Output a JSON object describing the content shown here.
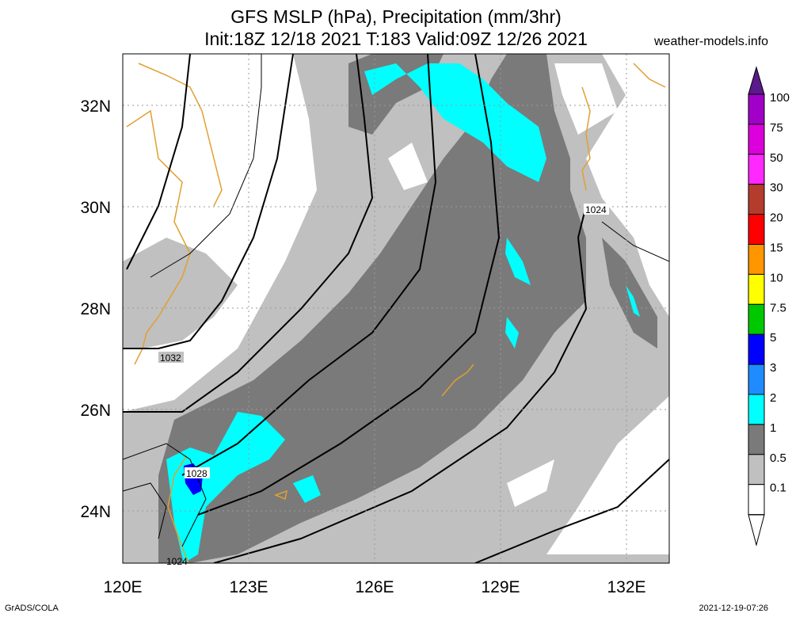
{
  "header": {
    "title_line1": "GFS MSLP (hPa), Precipitation (mm/3hr)",
    "title_line2": "Init:18Z 12/18 2021 T:183 Valid:09Z 12/26 2021",
    "site": "weather-models.info"
  },
  "footer": {
    "left": "GrADS/COLA",
    "right": "2021-12-19-07:26"
  },
  "axes": {
    "lat_labels": [
      "32N",
      "30N",
      "28N",
      "26N",
      "24N"
    ],
    "lon_labels": [
      "120E",
      "123E",
      "126E",
      "129E",
      "132E"
    ]
  },
  "isobar_labels": [
    "1024",
    "1032",
    "1028",
    "1024"
  ],
  "legend": {
    "labels": [
      "100",
      "75",
      "50",
      "30",
      "20",
      "15",
      "10",
      "7.5",
      "5",
      "3",
      "2",
      "1",
      "0.5",
      "0.1"
    ],
    "colors": [
      "#5a1a8c",
      "#a000c8",
      "#dc00dc",
      "#ff28ff",
      "#b43c2d",
      "#ff0000",
      "#ff9600",
      "#ffff00",
      "#00c800",
      "#0000ff",
      "#1e8cff",
      "#00ffff",
      "#7a7a7a",
      "#c0c0c0",
      "#ffffff"
    ]
  },
  "colors": {
    "light": "#c0c0c0",
    "dark": "#7a7a7a",
    "cyan": "#00ffff",
    "blue": "#0000ff",
    "coast": "#e0a030"
  }
}
